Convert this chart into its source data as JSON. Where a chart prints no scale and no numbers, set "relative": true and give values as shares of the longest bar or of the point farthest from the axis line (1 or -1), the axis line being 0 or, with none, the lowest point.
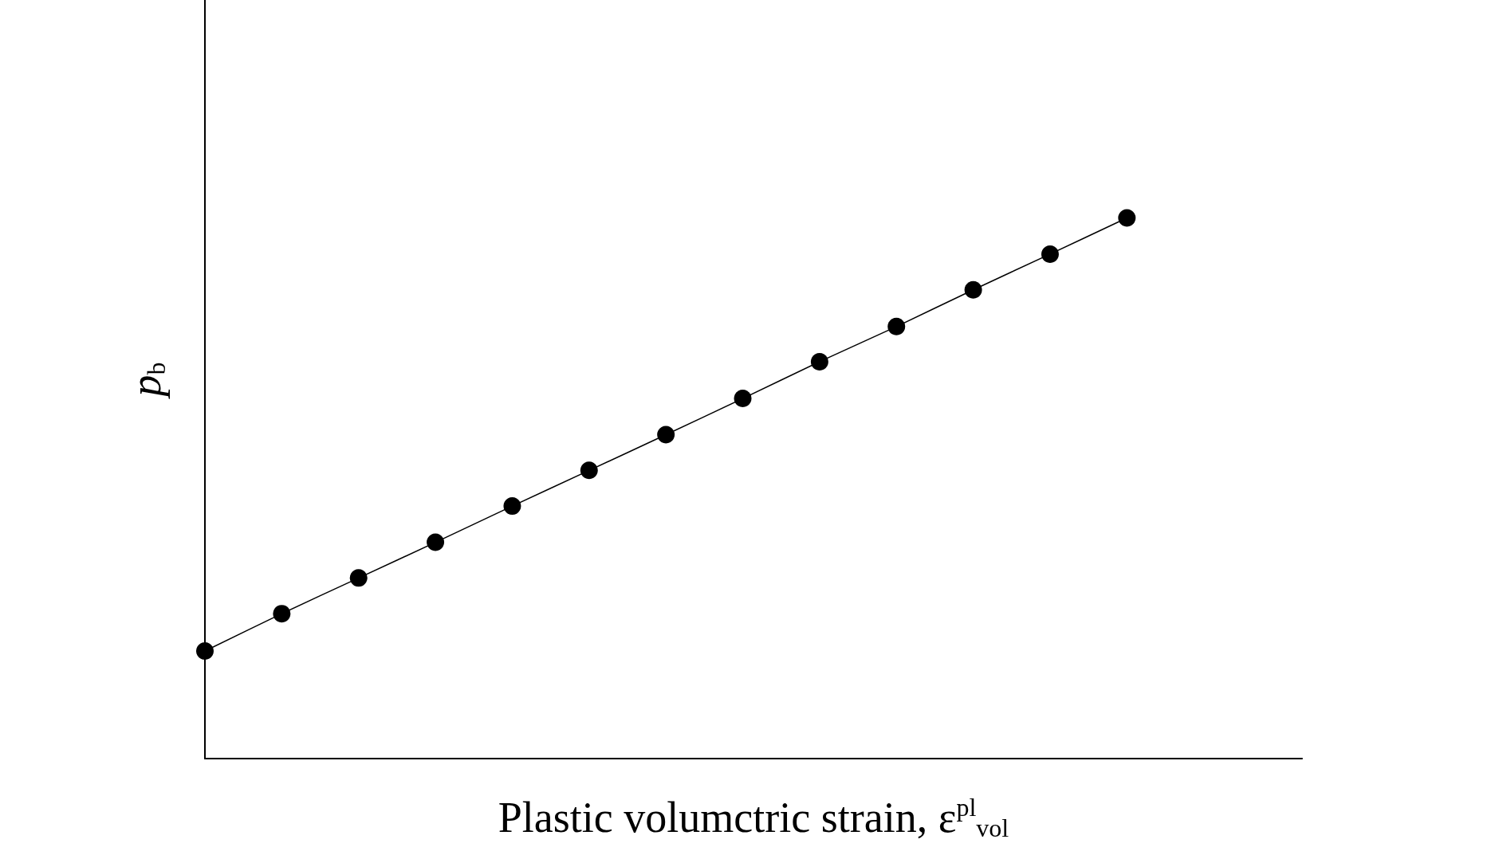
{
  "chart_data": {
    "type": "line",
    "relative": true,
    "xlabel": "Plastic volumctric strain, ε$^{pl}$$_{vol}$",
    "ylabel": "p$_{b}$",
    "categories": [
      null,
      null,
      null,
      null,
      null,
      null,
      null,
      null,
      null,
      null,
      null,
      null,
      null
    ],
    "series": [
      {
        "color": "#000000",
        "values": [
          0.199,
          0.268,
          0.334,
          0.4,
          0.467,
          0.533,
          0.599,
          0.666,
          0.734,
          0.799,
          0.867,
          0.933,
          1
        ]
      }
    ],
    "marker": "circle",
    "line_style": "solid",
    "grid": false
  }
}
